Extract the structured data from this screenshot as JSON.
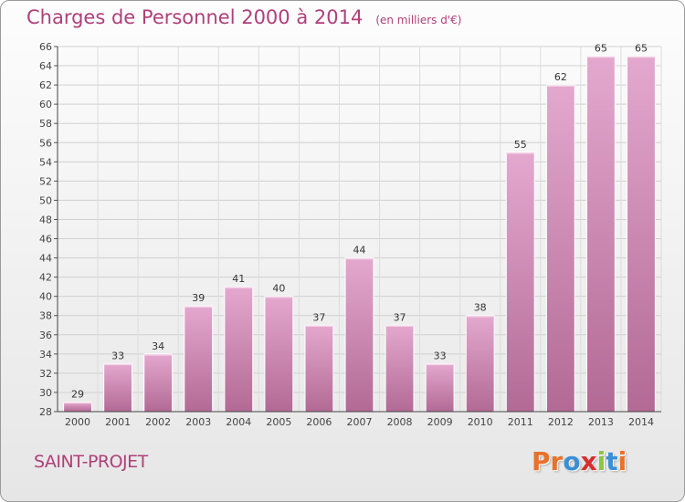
{
  "header": {
    "title": "Charges de Personnel 2000 à 2014",
    "unit_note": "(en milliers d'€)"
  },
  "footer": {
    "commune": "SAINT-PROJET",
    "logo": [
      "P",
      "r",
      "o",
      "x",
      "i",
      "t",
      "i"
    ]
  },
  "colors": {
    "title": "#b0407a",
    "bar_top": "#e4a8cf",
    "bar_bottom": "#b26a95",
    "logo": [
      "#e8722a",
      "#e8722a",
      "#3a8fd6",
      "#d62f2f",
      "#8cc63f",
      "#3a8fd6",
      "#e8722a"
    ]
  },
  "chart_data": {
    "type": "bar",
    "categories": [
      "2000",
      "2001",
      "2002",
      "2003",
      "2004",
      "2005",
      "2006",
      "2007",
      "2008",
      "2009",
      "2010",
      "2011",
      "2012",
      "2013",
      "2014"
    ],
    "values": [
      29,
      33,
      34,
      39,
      41,
      40,
      37,
      44,
      37,
      33,
      38,
      55,
      62,
      65,
      65
    ],
    "ylim": [
      28,
      66
    ],
    "yticks": [
      28,
      30,
      32,
      34,
      36,
      38,
      40,
      42,
      44,
      46,
      48,
      50,
      52,
      54,
      56,
      58,
      60,
      62,
      64,
      66
    ],
    "grid": true,
    "data_labels": true
  }
}
